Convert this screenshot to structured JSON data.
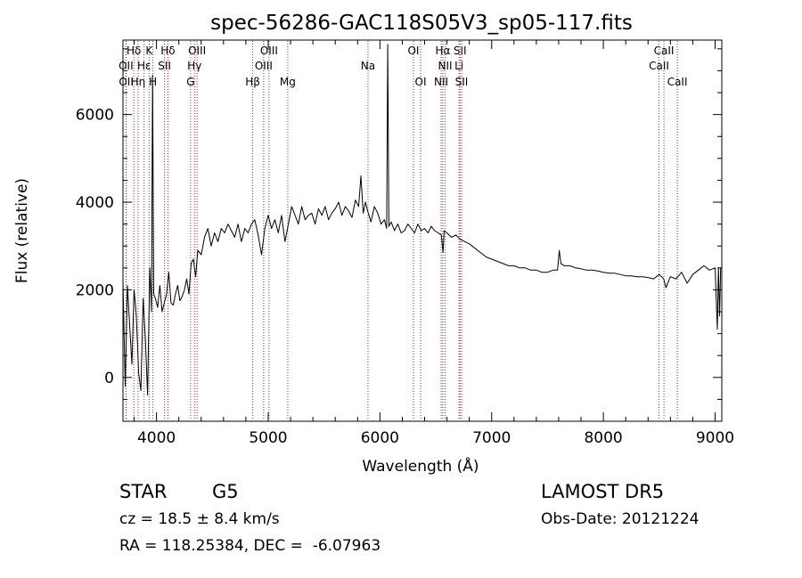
{
  "chart_data": {
    "type": "line",
    "title": "spec-56286-GAC118S05V3_sp05-117.fits",
    "xlabel": "Wavelength (Å)",
    "ylabel": "Flux (relative)",
    "xlim": [
      3700,
      9060
    ],
    "ylim": [
      -1000,
      7700
    ],
    "xticks": [
      4000,
      5000,
      6000,
      7000,
      8000,
      9000
    ],
    "yticks": [
      0,
      2000,
      4000,
      6000
    ],
    "grid": false,
    "series": [
      {
        "x": [
          3700,
          3720,
          3740,
          3760,
          3780,
          3800,
          3820,
          3840,
          3860,
          3880,
          3900,
          3920,
          3940,
          3955,
          3965,
          3975,
          3990,
          4010,
          4030,
          4050,
          4070,
          4090,
          4110,
          4130,
          4150,
          4170,
          4190,
          4210,
          4230,
          4250,
          4270,
          4290,
          4310,
          4330,
          4350,
          4370,
          4400,
          4430,
          4460,
          4490,
          4520,
          4550,
          4580,
          4610,
          4640,
          4670,
          4700,
          4730,
          4760,
          4790,
          4820,
          4850,
          4880,
          4910,
          4940,
          4970,
          5000,
          5030,
          5060,
          5090,
          5120,
          5150,
          5180,
          5210,
          5240,
          5270,
          5300,
          5330,
          5360,
          5390,
          5420,
          5450,
          5480,
          5510,
          5540,
          5570,
          5600,
          5630,
          5660,
          5690,
          5720,
          5750,
          5780,
          5810,
          5830,
          5850,
          5870,
          5890,
          5920,
          5950,
          5980,
          6010,
          6040,
          6060,
          6070,
          6080,
          6100,
          6130,
          6160,
          6190,
          6220,
          6250,
          6280,
          6310,
          6340,
          6370,
          6400,
          6430,
          6460,
          6490,
          6520,
          6550,
          6565,
          6575,
          6600,
          6640,
          6680,
          6720,
          6760,
          6800,
          6850,
          6900,
          6950,
          7000,
          7050,
          7100,
          7150,
          7200,
          7250,
          7300,
          7350,
          7400,
          7450,
          7500,
          7550,
          7590,
          7605,
          7620,
          7650,
          7700,
          7750,
          7800,
          7850,
          7900,
          7950,
          8000,
          8050,
          8100,
          8150,
          8200,
          8250,
          8300,
          8350,
          8400,
          8450,
          8500,
          8540,
          8560,
          8600,
          8650,
          8700,
          8750,
          8800,
          8850,
          8900,
          8950,
          9000,
          9020,
          9030,
          9040,
          9050
        ],
        "y": [
          2200,
          -200,
          2100,
          1200,
          300,
          2000,
          1400,
          100,
          -300,
          1800,
          900,
          -400,
          2500,
          1500,
          6900,
          1900,
          1800,
          1600,
          2100,
          1500,
          1700,
          1900,
          2400,
          1700,
          1650,
          1900,
          2100,
          1750,
          1850,
          2000,
          2250,
          1900,
          2600,
          2700,
          2300,
          2900,
          2800,
          3200,
          3400,
          3000,
          3300,
          3100,
          3400,
          3300,
          3500,
          3350,
          3200,
          3500,
          3100,
          3400,
          3300,
          3500,
          3600,
          3250,
          2800,
          3400,
          3700,
          3400,
          3600,
          3300,
          3700,
          3100,
          3500,
          3900,
          3700,
          3500,
          3900,
          3600,
          3700,
          3750,
          3500,
          3850,
          3700,
          3900,
          3600,
          3750,
          3850,
          4000,
          3700,
          3900,
          3800,
          3650,
          4050,
          3900,
          4600,
          3750,
          4000,
          3800,
          3550,
          3900,
          3750,
          3500,
          3600,
          3400,
          7600,
          3450,
          3550,
          3350,
          3500,
          3300,
          3350,
          3500,
          3400,
          3300,
          3500,
          3350,
          3400,
          3300,
          3450,
          3350,
          3300,
          3250,
          2850,
          3350,
          3300,
          3200,
          3250,
          3150,
          3100,
          3050,
          2950,
          2850,
          2750,
          2700,
          2650,
          2600,
          2550,
          2550,
          2500,
          2500,
          2450,
          2450,
          2400,
          2400,
          2450,
          2450,
          2900,
          2600,
          2550,
          2550,
          2500,
          2480,
          2450,
          2450,
          2430,
          2400,
          2380,
          2380,
          2350,
          2320,
          2320,
          2300,
          2300,
          2280,
          2250,
          2350,
          2250,
          2050,
          2300,
          2250,
          2400,
          2150,
          2350,
          2450,
          2550,
          2450,
          2500,
          1100,
          2500,
          1400,
          2500
        ]
      }
    ],
    "lines": [
      {
        "label": "Hδ",
        "wl": 3797,
        "row": 0
      },
      {
        "label": "OII",
        "wl": 3727,
        "row": 1
      },
      {
        "label": "OII",
        "wl": 3729,
        "row": 2
      },
      {
        "label": "Hε",
        "wl": 3889,
        "row": 1
      },
      {
        "label": "Hη",
        "wl": 3835,
        "row": 2
      },
      {
        "label": "K",
        "wl": 3934,
        "row": 0
      },
      {
        "label": "H",
        "wl": 3968,
        "row": 2
      },
      {
        "label": "Hδ",
        "wl": 4102,
        "row": 0
      },
      {
        "label": "SII",
        "wl": 4072,
        "row": 1
      },
      {
        "label": "OIII",
        "wl": 4363,
        "row": 0
      },
      {
        "label": "Hγ",
        "wl": 4340,
        "row": 1
      },
      {
        "label": "G",
        "wl": 4305,
        "row": 2
      },
      {
        "label": "OIII",
        "wl": 5007,
        "row": 0
      },
      {
        "label": "OIII",
        "wl": 4959,
        "row": 1
      },
      {
        "label": "Hβ",
        "wl": 4861,
        "row": 2
      },
      {
        "label": "Mg",
        "wl": 5175,
        "row": 2
      },
      {
        "label": "Na",
        "wl": 5893,
        "row": 1
      },
      {
        "label": "OI",
        "wl": 6300,
        "row": 0
      },
      {
        "label": "OI",
        "wl": 6364,
        "row": 2
      },
      {
        "label": "Hα",
        "wl": 6563,
        "row": 0
      },
      {
        "label": "SII",
        "wl": 6717,
        "row": 0
      },
      {
        "label": "NII",
        "wl": 6584,
        "row": 1
      },
      {
        "label": "Li",
        "wl": 6708,
        "row": 1
      },
      {
        "label": "NII",
        "wl": 6548,
        "row": 2
      },
      {
        "label": "SII",
        "wl": 6731,
        "row": 2
      },
      {
        "label": "CaII",
        "wl": 8542,
        "row": 0
      },
      {
        "label": "CaII",
        "wl": 8498,
        "row": 1
      },
      {
        "label": "CaII",
        "wl": 8662,
        "row": 2
      }
    ]
  },
  "info": {
    "object_class": "STAR",
    "subclass": "G5",
    "survey": "LAMOST DR5",
    "redshift": "cz = 18.5 ± 8.4 km/s",
    "obs_date": "Obs-Date: 20121224",
    "coords": "RA = 118.25384, DEC =  -6.07963"
  }
}
